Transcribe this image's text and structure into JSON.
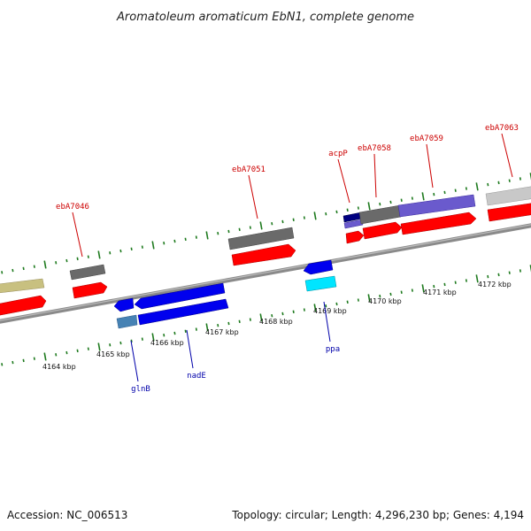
{
  "title": "Aromatoleum aromaticum EbN1, complete genome",
  "footer": {
    "accession": "Accession: NC_006513",
    "summary": "Topology: circular; Length: 4,296,230 bp; Genes: 4,194"
  },
  "colors": {
    "background": "#ffffff",
    "backbone": "#8a8a8a",
    "tick": "#1e7a1e",
    "label_forward": "#cc0000",
    "label_reverse": "#0000aa",
    "cds": "#ff0000",
    "gene_blue": "#0000ee",
    "gene_grey": "#666666",
    "gene_olive": "#c8c080",
    "gene_light_grey": "#c8c8c8",
    "gene_periwinkle": "#6a5acd",
    "gene_navy": "#000080",
    "gene_steel": "#4682b4",
    "gene_cyan": "#00e5ff"
  },
  "scale": {
    "unit": "kbp",
    "labels": [
      "4164 kbp",
      "4165 kbp",
      "4166 kbp",
      "4167 kbp",
      "4168 kbp",
      "4169 kbp",
      "4170 kbp",
      "4171 kbp",
      "4172 kbp"
    ]
  },
  "genes_forward": [
    {
      "name": "ebA7046",
      "icon": "gene-callout"
    },
    {
      "name": "ebA7051",
      "icon": "gene-callout"
    },
    {
      "name": "acpP",
      "icon": "gene-callout"
    },
    {
      "name": "ebA7058",
      "icon": "gene-callout"
    },
    {
      "name": "ebA7059",
      "icon": "gene-callout"
    },
    {
      "name": "ebA7063",
      "icon": "gene-callout"
    }
  ],
  "genes_reverse": [
    {
      "name": "glnB",
      "icon": "gene-callout"
    },
    {
      "name": "nadE",
      "icon": "gene-callout"
    },
    {
      "name": "ppa",
      "icon": "gene-callout"
    }
  ]
}
